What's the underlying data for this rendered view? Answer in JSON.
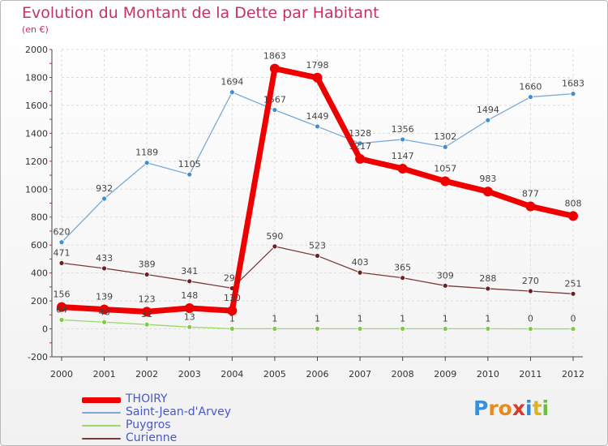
{
  "chart_data": {
    "type": "line",
    "title": "Evolution du Montant de la Dette par Habitant",
    "subtitle": "(en €)",
    "x": [
      "2000",
      "2001",
      "2002",
      "2003",
      "2004",
      "2005",
      "2006",
      "2007",
      "2008",
      "2009",
      "2010",
      "2011",
      "2012"
    ],
    "ylim": [
      -200,
      2000
    ],
    "yticks": [
      "-200",
      "0",
      "200",
      "400",
      "600",
      "800",
      "1000",
      "1200",
      "1400",
      "1600",
      "1800",
      "2000"
    ],
    "grid": true,
    "legend_position": "bottom-left",
    "series": [
      {
        "name": "THOIRY",
        "color": "#ee0000",
        "line_width": 7,
        "marker_radius": 6,
        "values": [
          156,
          139,
          123,
          148,
          130,
          1863,
          1798,
          1217,
          1147,
          1057,
          983,
          877,
          808
        ],
        "labels": [
          "156",
          "139",
          "123",
          "148",
          "130",
          "1863",
          "1798",
          "1217",
          "1147",
          "1057",
          "983",
          "877",
          "808"
        ]
      },
      {
        "name": "Saint-Jean-d'Arvey",
        "color": "#7aaad6",
        "marker_color": "#3f8fd0",
        "line_width": 1.3,
        "marker_radius": 3,
        "values": [
          620,
          932,
          1189,
          1105,
          1694,
          1567,
          1449,
          1328,
          1356,
          1302,
          1494,
          1660,
          1683
        ],
        "labels": [
          "620",
          "932",
          "1189",
          "1105",
          "1694",
          "1567",
          "1449",
          "1328",
          "1356",
          "1302",
          "1494",
          "1660",
          "1683"
        ]
      },
      {
        "name": "Puygros",
        "color": "#9ad86a",
        "marker_color": "#7dcc45",
        "line_width": 1.3,
        "marker_radius": 3,
        "values": [
          64,
          48,
          31,
          13,
          1,
          1,
          1,
          1,
          1,
          1,
          1,
          0,
          0
        ],
        "labels": [
          "64",
          "48",
          "31",
          "13",
          "1",
          "1",
          "1",
          "1",
          "1",
          "1",
          "1",
          "0",
          "0"
        ]
      },
      {
        "name": "Curienne",
        "color": "#7a3a3a",
        "marker_color": "#6b2020",
        "line_width": 1.3,
        "marker_radius": 3,
        "values": [
          471,
          433,
          389,
          341,
          291,
          590,
          523,
          403,
          365,
          309,
          288,
          270,
          251
        ],
        "labels": [
          "471",
          "433",
          "389",
          "341",
          "291",
          "590",
          "523",
          "403",
          "365",
          "309",
          "288",
          "270",
          "251"
        ]
      }
    ]
  },
  "legend": {
    "items": [
      {
        "label": "THOIRY",
        "color": "#ee0000"
      },
      {
        "label": "Saint-Jean-d'Arvey",
        "color": "#7aaad6"
      },
      {
        "label": "Puygros",
        "color": "#9ad86a"
      },
      {
        "label": "Curienne",
        "color": "#7a3a3a"
      }
    ]
  },
  "brand": {
    "text": "Proxiti",
    "letter_colors": [
      "#3a8fd8",
      "#e88a1f",
      "#e88a1f",
      "#d73a2a",
      "#2f8ad6",
      "#e0b21e",
      "#6bbf3a"
    ]
  }
}
